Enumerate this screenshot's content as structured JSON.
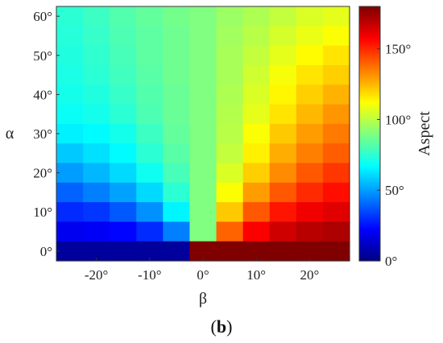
{
  "chart_data": {
    "type": "heatmap",
    "xlabel": "β",
    "ylabel": "α",
    "x_ticks": [
      "-20°",
      "-10°",
      "0°",
      "10°",
      "20°"
    ],
    "x_tick_values": [
      -20,
      -10,
      0,
      10,
      20
    ],
    "y_ticks": [
      "0°",
      "10°",
      "20°",
      "30°",
      "40°",
      "50°",
      "60°"
    ],
    "y_tick_values": [
      0,
      10,
      20,
      30,
      40,
      50,
      60
    ],
    "x_centers": [
      -25,
      -20,
      -15,
      -10,
      -5,
      0,
      5,
      10,
      15,
      20,
      25
    ],
    "y_centers": [
      0,
      5,
      10,
      15,
      20,
      25,
      30,
      35,
      40,
      45,
      50,
      55,
      60
    ],
    "xlim": [
      -27.5,
      27.5
    ],
    "ylim": [
      -2.5,
      62.5
    ],
    "colormap": "jet",
    "colorbar": {
      "label": "Aspect",
      "ticks": [
        "0°",
        "50°",
        "100°",
        "150°"
      ],
      "tick_values": [
        0,
        50,
        100,
        150
      ],
      "range": [
        0,
        180
      ]
    },
    "grid": false,
    "z_rows_alpha_descending": [
      [
        75,
        78,
        82,
        85,
        88,
        90,
        95,
        98,
        102,
        106,
        108
      ],
      [
        74,
        77,
        81,
        84,
        87,
        90,
        96,
        100,
        105,
        109,
        112
      ],
      [
        73,
        76,
        80,
        84,
        87,
        90,
        97,
        102,
        108,
        113,
        117
      ],
      [
        72,
        75,
        79,
        83,
        87,
        90,
        97,
        104,
        111,
        117,
        121
      ],
      [
        71,
        73,
        77,
        82,
        86,
        90,
        98,
        106,
        114,
        121,
        126
      ],
      [
        69,
        71,
        75,
        81,
        86,
        90,
        99,
        108,
        117,
        125,
        131
      ],
      [
        65,
        67,
        71,
        78,
        85,
        90,
        100,
        112,
        122,
        130,
        136
      ],
      [
        58,
        62,
        67,
        75,
        83,
        90,
        102,
        115,
        127,
        135,
        141
      ],
      [
        50,
        55,
        61,
        70,
        80,
        90,
        106,
        121,
        133,
        142,
        148
      ],
      [
        40,
        45,
        51,
        61,
        75,
        90,
        112,
        130,
        142,
        150,
        155
      ],
      [
        30,
        32,
        38,
        48,
        66,
        90,
        122,
        142,
        154,
        160,
        163
      ],
      [
        20,
        21,
        23,
        30,
        45,
        90,
        140,
        158,
        166,
        170,
        172
      ],
      [
        5,
        5,
        5,
        5,
        5,
        180,
        180,
        180,
        180,
        180,
        180
      ]
    ]
  },
  "caption": {
    "open": "(",
    "letter": "b",
    "close": ")"
  }
}
